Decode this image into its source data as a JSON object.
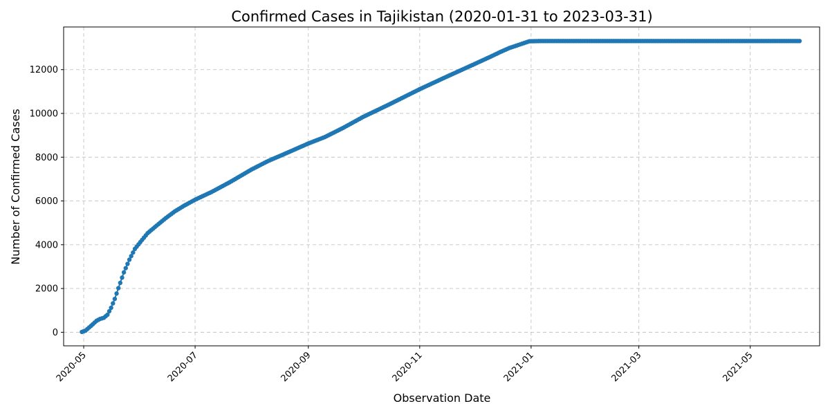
{
  "chart_data": {
    "type": "line",
    "title": "Confirmed Cases in Tajikistan (2020-01-31 to 2023-03-31)",
    "xlabel": "Observation Date",
    "ylabel": "Number of Confirmed Cases",
    "x_type": "date",
    "xlim": [
      "2020-04-20",
      "2021-06-08"
    ],
    "ylim": [
      -620,
      13950
    ],
    "grid": true,
    "marker": "circle",
    "color": "#1f77b4",
    "x_ticks": [
      "2020-05-01",
      "2020-07-01",
      "2020-09-01",
      "2020-11-01",
      "2021-01-01",
      "2021-03-01",
      "2021-05-01"
    ],
    "x_tick_labels": [
      "2020-05",
      "2020-07",
      "2020-09",
      "2020-11",
      "2021-01",
      "2021-03",
      "2021-05"
    ],
    "y_ticks": [
      0,
      2000,
      4000,
      6000,
      8000,
      10000,
      12000
    ],
    "y_tick_labels": [
      "0",
      "2000",
      "4000",
      "6000",
      "8000",
      "10000",
      "12000"
    ],
    "series": [
      {
        "anchors": [
          [
            "2020-04-30",
            15
          ],
          [
            "2020-05-02",
            76
          ],
          [
            "2020-05-05",
            293
          ],
          [
            "2020-05-08",
            522
          ],
          [
            "2020-05-10",
            612
          ],
          [
            "2020-05-12",
            661
          ],
          [
            "2020-05-14",
            801
          ],
          [
            "2020-05-16",
            1118
          ],
          [
            "2020-05-18",
            1524
          ],
          [
            "2020-05-20",
            2017
          ],
          [
            "2020-05-23",
            2738
          ],
          [
            "2020-05-26",
            3316
          ],
          [
            "2020-05-29",
            3807
          ],
          [
            "2020-06-01",
            4120
          ],
          [
            "2020-06-05",
            4529
          ],
          [
            "2020-06-10",
            4878
          ],
          [
            "2020-06-15",
            5221
          ],
          [
            "2020-06-20",
            5530
          ],
          [
            "2020-06-25",
            5784
          ],
          [
            "2020-07-01",
            6058
          ],
          [
            "2020-07-10",
            6410
          ],
          [
            "2020-07-20",
            6857
          ],
          [
            "2020-08-01",
            7442
          ],
          [
            "2020-08-10",
            7826
          ],
          [
            "2020-08-20",
            8186
          ],
          [
            "2020-09-01",
            8626
          ],
          [
            "2020-09-10",
            8918
          ],
          [
            "2020-09-20",
            9336
          ],
          [
            "2020-10-01",
            9840
          ],
          [
            "2020-10-15",
            10400
          ],
          [
            "2020-11-01",
            11107
          ],
          [
            "2020-11-15",
            11650
          ],
          [
            "2020-12-01",
            12256
          ],
          [
            "2020-12-10",
            12601
          ],
          [
            "2020-12-15",
            12801
          ],
          [
            "2020-12-20",
            12986
          ],
          [
            "2020-12-31",
            13296
          ],
          [
            "2021-01-06",
            13308
          ],
          [
            "2021-05-28",
            13308
          ]
        ]
      }
    ]
  }
}
